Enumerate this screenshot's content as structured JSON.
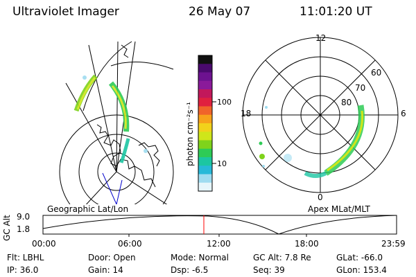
{
  "header": {
    "title": "Ultraviolet Imager",
    "date": "26 May 07",
    "time": "11:01:20 UT"
  },
  "colorbar": {
    "unit_label": "photon cm⁻²s⁻¹",
    "ticks": [
      "100",
      "10"
    ],
    "colors": [
      "#111111",
      "#4a0a6e",
      "#6d1290",
      "#8a1a9a",
      "#c2185b",
      "#e0203f",
      "#f0642a",
      "#f7a21b",
      "#f2d21b",
      "#cfe61a",
      "#7fd31b",
      "#2ecb56",
      "#1cc6a2",
      "#27b9d8",
      "#9fdcf0",
      "#e6f6fb"
    ]
  },
  "geographic": {
    "label": "Geographic Lat/Lon"
  },
  "apex": {
    "label": "Apex MLat/MLT",
    "mlt_labels": [
      "12",
      "18",
      "6",
      "0"
    ],
    "lat_labels": [
      "60",
      "70",
      "80"
    ]
  },
  "timeline": {
    "axis_label": "GC Alt",
    "y_ticks": [
      "9.0",
      "1.8"
    ],
    "x_ticks": [
      "00:00",
      "06:00",
      "12:00",
      "18:00",
      "23:59"
    ],
    "marker_color": "#ff0000",
    "line_color": "#000000"
  },
  "info": {
    "row1": {
      "flt": "Flt: LBHL",
      "door": "Door: Open",
      "mode": "Mode: Normal",
      "gc_alt": "GC Alt: 7.8 Re",
      "glat": "GLat: -66.0"
    },
    "row2": {
      "ip": "IP: 36.0",
      "gain": "Gain: 14",
      "dsp": "Dsp:   -6.5",
      "seq": "Seq: 39",
      "glon": "GLon: 153.4"
    }
  }
}
